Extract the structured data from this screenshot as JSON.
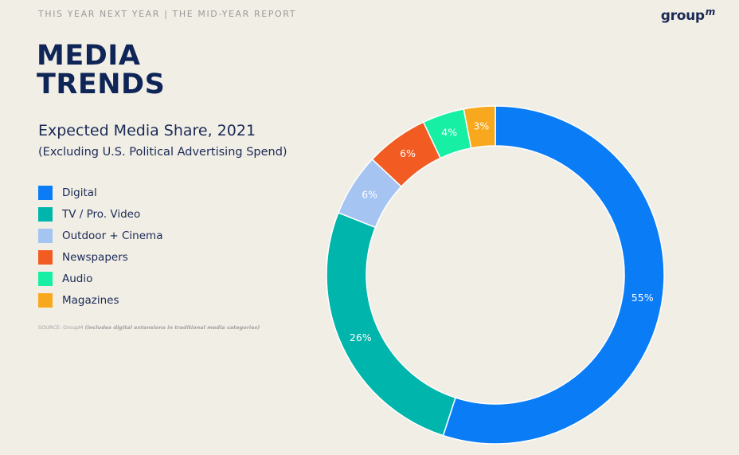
{
  "header": {
    "eyebrow": "THIS YEAR NEXT YEAR | THE MID-YEAR REPORT",
    "logo_text": "group",
    "logo_super": "m"
  },
  "headline": {
    "line1": "MEDIA",
    "line2": "TRENDS"
  },
  "source": {
    "prefix": "SOURCE: GroupM ",
    "note": "(includes digital extensions in traditional media categories)"
  },
  "chart_data": {
    "type": "pie",
    "donut": true,
    "title": "Expected Media Share, 2021",
    "subtitle": "(Excluding U.S. Political Advertising Spend)",
    "legend_position": "left",
    "slices": [
      {
        "label": "Digital",
        "value": 55,
        "value_label": "55%",
        "color": "#0a7cf5"
      },
      {
        "label": "TV / Pro. Video",
        "value": 26,
        "value_label": "26%",
        "color": "#00b5ab"
      },
      {
        "label": "Outdoor + Cinema",
        "value": 6,
        "value_label": "6%",
        "color": "#a6c4f2"
      },
      {
        "label": "Newspapers",
        "value": 6,
        "value_label": "6%",
        "color": "#f25c22"
      },
      {
        "label": "Audio",
        "value": 4,
        "value_label": "4%",
        "color": "#17f0a4"
      },
      {
        "label": "Magazines",
        "value": 3,
        "value_label": "3%",
        "color": "#f8a81c"
      }
    ]
  }
}
